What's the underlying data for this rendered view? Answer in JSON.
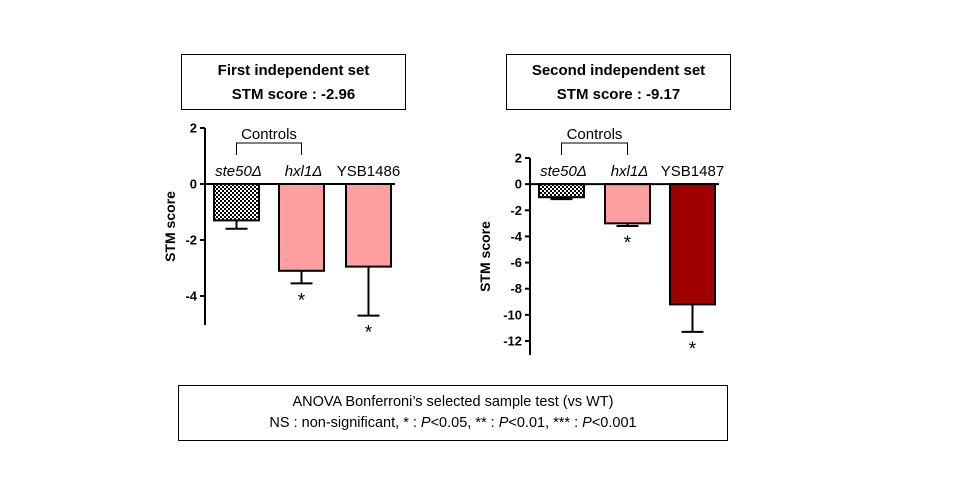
{
  "panels": [
    {
      "title_line1": "First independent set",
      "title_line2": "STM score : -2.96"
    },
    {
      "title_line1": "Second independent set",
      "title_line2": "STM score : -9.17"
    }
  ],
  "footer": {
    "line1": "ANOVA Bonferroni’s selected sample test (vs WT)",
    "line2_parts": [
      "NS : non-significant, * : ",
      "P",
      "<0.05, ** : ",
      "P",
      "<0.01, *** : ",
      "P",
      "<0.001"
    ]
  },
  "chart_data": [
    {
      "type": "bar",
      "title": "First independent set",
      "subtitle": "STM score : -2.96",
      "ylabel": "STM score",
      "ylim": [
        -5,
        2
      ],
      "yticks": [
        2,
        0,
        -2,
        -4
      ],
      "bracket_label": "Controls",
      "categories": [
        "ste50Δ",
        "hxl1Δ",
        "YSB1486"
      ],
      "values": [
        -1.3,
        -3.1,
        -2.95
      ],
      "errors": [
        0.3,
        0.45,
        1.75
      ],
      "significance": [
        "",
        "*",
        "*"
      ],
      "colors": [
        "checker",
        "#ff9f9f",
        "#ff9f9f"
      ]
    },
    {
      "type": "bar",
      "title": "Second independent set",
      "subtitle": "STM score : -9.17",
      "ylabel": "STM score",
      "ylim": [
        -13,
        2
      ],
      "yticks": [
        2,
        0,
        -2,
        -4,
        -6,
        -8,
        -10,
        -12
      ],
      "bracket_label": "Controls",
      "categories": [
        "ste50Δ",
        "hxl1Δ",
        "YSB1487"
      ],
      "values": [
        -1.0,
        -3.0,
        -9.2
      ],
      "errors": [
        0.15,
        0.2,
        2.1
      ],
      "significance": [
        "",
        "*",
        "*"
      ],
      "colors": [
        "checker",
        "#ff9f9f",
        "#a00000"
      ]
    }
  ]
}
